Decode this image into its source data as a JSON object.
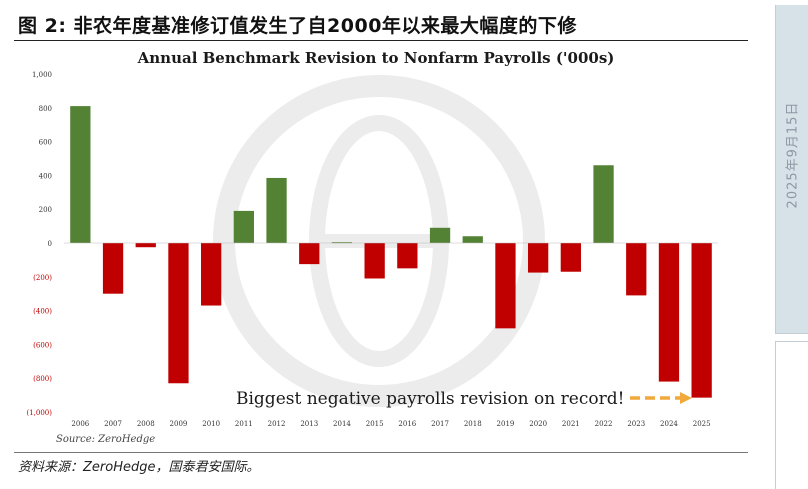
{
  "figure": {
    "caption": "图 2:  非农年度基准修订值发生了自2000年以来最大幅度的下修",
    "source": "资料来源：ZeroHedge，国泰君安国际。"
  },
  "side_panel": {
    "date": "2025年9月15日"
  },
  "colors": {
    "positive": "#548235",
    "negative": "#c00000",
    "arrow": "#f2a93b",
    "watermark": "#ececec"
  },
  "chart_data": {
    "type": "bar",
    "title": "Annual Benchmark Revision to Nonfarm Payrolls ('000s)",
    "xlabel": "",
    "ylabel": "",
    "ylim": [
      -1000,
      1000
    ],
    "yticks": [
      1000,
      800,
      600,
      400,
      200,
      0,
      -200,
      -400,
      -600,
      -800,
      -1000
    ],
    "ytick_labels": [
      "1,000",
      "800",
      "600",
      "400",
      "200",
      "0",
      "(200)",
      "(400)",
      "(600)",
      "(800)",
      "(1,000)"
    ],
    "categories": [
      "2006",
      "2007",
      "2008",
      "2009",
      "2010",
      "2011",
      "2012",
      "2013",
      "2014",
      "2015",
      "2016",
      "2017",
      "2018",
      "2019",
      "2020",
      "2021",
      "2022",
      "2023",
      "2024",
      "2025"
    ],
    "values": [
      810,
      -300,
      -25,
      -830,
      -370,
      190,
      385,
      -125,
      5,
      -210,
      -150,
      90,
      40,
      -505,
      -175,
      -170,
      460,
      -310,
      -820,
      -915
    ],
    "grid": false,
    "annotation": "Biggest negative payrolls revision on record!",
    "source_note": "Source: ZeroHedge"
  }
}
